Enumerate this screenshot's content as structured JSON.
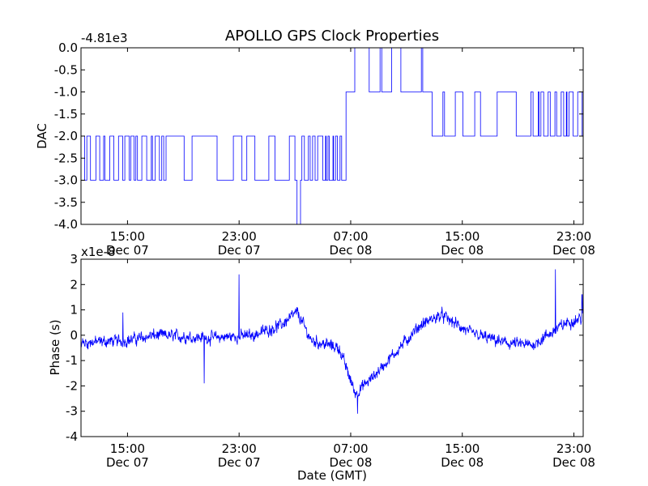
{
  "figure": {
    "title": "APOLLO GPS Clock Properties",
    "xlabel": "Date (GMT)",
    "line_color": "#0000ff",
    "x_ticks": [
      {
        "time": "Dec 07 15:00",
        "line1": "15:00",
        "line2": "Dec 07"
      },
      {
        "time": "Dec 07 23:00",
        "line1": "23:00",
        "line2": "Dec 07"
      },
      {
        "time": "Dec 08 07:00",
        "line1": "07:00",
        "line2": "Dec 08"
      },
      {
        "time": "Dec 08 15:00",
        "line1": "15:00",
        "line2": "Dec 08"
      },
      {
        "time": "Dec 08 23:00",
        "line1": "23:00",
        "line2": "Dec 08"
      }
    ]
  },
  "chart_data": [
    {
      "type": "line",
      "name": "dac",
      "ylabel": "DAC",
      "offset_label": "-4.81e3",
      "xlim": [
        "Dec 07 11:40",
        "Dec 08 23:40"
      ],
      "ylim": [
        -4.0,
        0.0
      ],
      "y_ticks": [
        "-4.0",
        "-3.5",
        "-3.0",
        "-2.5",
        "-2.0",
        "-1.5",
        "-1.0",
        "-0.5",
        "0.0"
      ],
      "step": true,
      "segments": [
        {
          "from": "Dec 07 11:40",
          "to": "Dec 07 18:00",
          "levels": [
            -2,
            -3
          ],
          "pattern": "toggle-dense"
        },
        {
          "from": "Dec 07 18:00",
          "to": "Dec 08 03:00",
          "levels": [
            -2,
            -3
          ],
          "pattern": "toggle-sparse"
        },
        {
          "from": "Dec 08 03:00",
          "to": "Dec 08 03:30",
          "levels": [
            -3,
            -4
          ],
          "pattern": "dip"
        },
        {
          "from": "Dec 08 03:30",
          "to": "Dec 08 06:40",
          "levels": [
            -2,
            -3
          ],
          "pattern": "toggle-dense"
        },
        {
          "from": "Dec 08 06:40",
          "to": "Dec 08 12:10",
          "levels": [
            -1,
            0
          ],
          "pattern": "toggle-sparse"
        },
        {
          "from": "Dec 08 12:10",
          "to": "Dec 08 14:30",
          "levels": [
            -1,
            -2
          ],
          "pattern": "toggle-sparse"
        },
        {
          "from": "Dec 08 14:30",
          "to": "Dec 08 20:00",
          "levels": [
            -1,
            -2
          ],
          "pattern": "toggle-sparse"
        },
        {
          "from": "Dec 08 20:00",
          "to": "Dec 08 23:40",
          "levels": [
            -1,
            -2
          ],
          "pattern": "toggle-dense"
        }
      ]
    },
    {
      "type": "line",
      "name": "phase",
      "ylabel": "Phase (s)",
      "offset_label": "x1e-8",
      "xlim": [
        "Dec 07 11:40",
        "Dec 08 23:40"
      ],
      "ylim": [
        -4,
        3
      ],
      "y_ticks": [
        "-4",
        "-3",
        "-2",
        "-1",
        "0",
        "1",
        "2",
        "3"
      ],
      "noise_amplitude": 0.3,
      "trend": [
        {
          "time": "Dec 07 11:40",
          "value": -0.3
        },
        {
          "time": "Dec 07 15:00",
          "value": -0.2
        },
        {
          "time": "Dec 07 17:00",
          "value": 0.0
        },
        {
          "time": "Dec 07 21:00",
          "value": -0.1
        },
        {
          "time": "Dec 08 00:00",
          "value": 0.0
        },
        {
          "time": "Dec 08 02:00",
          "value": 0.4
        },
        {
          "time": "Dec 08 03:10",
          "value": 0.9
        },
        {
          "time": "Dec 08 04:10",
          "value": -0.2
        },
        {
          "time": "Dec 08 06:10",
          "value": -0.5
        },
        {
          "time": "Dec 08 07:20",
          "value": -2.3
        },
        {
          "time": "Dec 08 08:30",
          "value": -1.7
        },
        {
          "time": "Dec 08 10:00",
          "value": -0.8
        },
        {
          "time": "Dec 08 12:00",
          "value": 0.4
        },
        {
          "time": "Dec 08 13:30",
          "value": 0.8
        },
        {
          "time": "Dec 08 15:30",
          "value": 0.1
        },
        {
          "time": "Dec 08 18:00",
          "value": -0.3
        },
        {
          "time": "Dec 08 20:00",
          "value": -0.4
        },
        {
          "time": "Dec 08 22:30",
          "value": 0.5
        },
        {
          "time": "Dec 08 23:40",
          "value": 0.7
        }
      ],
      "spikes": [
        {
          "time": "Dec 07 14:40",
          "value": 0.9
        },
        {
          "time": "Dec 07 20:30",
          "value": -1.9
        },
        {
          "time": "Dec 07 23:00",
          "value": 2.4
        },
        {
          "time": "Dec 08 07:30",
          "value": -3.1
        },
        {
          "time": "Dec 08 21:40",
          "value": 2.6
        },
        {
          "time": "Dec 08 23:35",
          "value": 1.6
        }
      ]
    }
  ]
}
